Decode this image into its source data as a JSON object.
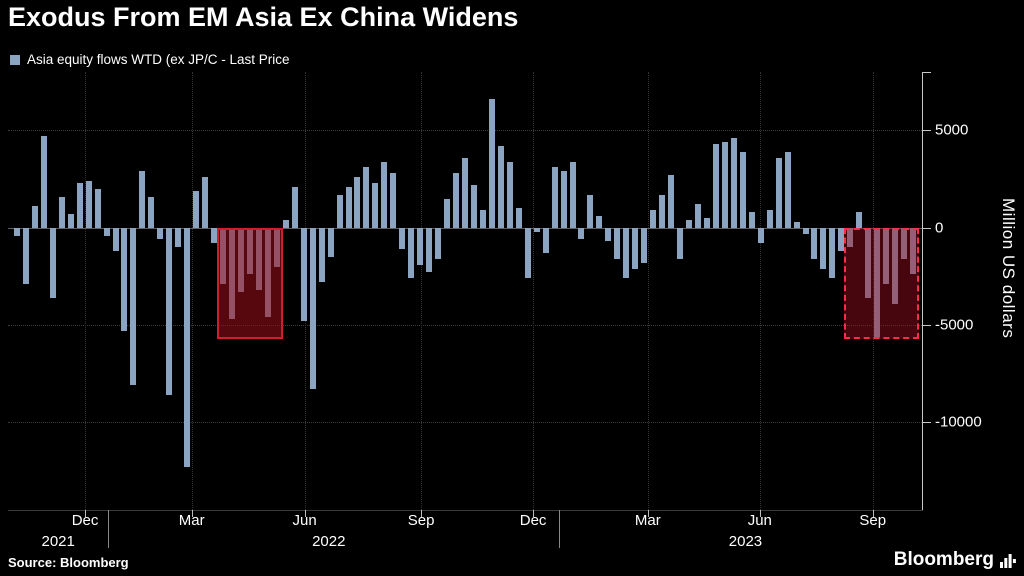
{
  "title": "Exodus From EM Asia Ex China Widens",
  "legend": {
    "label": "Asia equity flows WTD (ex JP/C - Last Price",
    "swatch_color": "#8ba4c2"
  },
  "y_axis": {
    "title": "Million US dollars"
  },
  "source": "Source: Bloomberg",
  "logo": {
    "text": "Bloomberg"
  },
  "chart_data": {
    "type": "bar",
    "title": "Exodus From EM Asia Ex China Widens",
    "series_name": "Asia equity flows WTD (ex JP/C - Last Price",
    "x_unit": "weekly",
    "ylabel": "Million US dollars",
    "ylim": [
      -14500,
      8000
    ],
    "y_ticks": [
      5000,
      0,
      -5000,
      -10000
    ],
    "bar_color": "#8ba4c2",
    "highlight_color": "#cf1f2e",
    "values": [
      -400,
      -2900,
      1100,
      4700,
      -3600,
      1600,
      700,
      2300,
      2400,
      2000,
      -400,
      -1200,
      -5300,
      -8100,
      2900,
      1600,
      -600,
      -8600,
      -1000,
      -12300,
      1900,
      2600,
      -800,
      -2900,
      -4700,
      -3300,
      -2400,
      -3200,
      -4600,
      -2000,
      400,
      2100,
      -4800,
      -8300,
      -2800,
      -1500,
      1700,
      2100,
      2600,
      3100,
      2300,
      3400,
      2800,
      -1100,
      -2600,
      -1900,
      -2300,
      -1600,
      1500,
      2800,
      3600,
      2200,
      900,
      6600,
      4200,
      3400,
      1000,
      -2600,
      -200,
      -1300,
      3100,
      2900,
      3400,
      -600,
      1700,
      600,
      -700,
      -1600,
      -2600,
      -2100,
      -1800,
      900,
      1700,
      2700,
      -1600,
      400,
      1200,
      500,
      4300,
      4400,
      4600,
      3900,
      800,
      -800,
      900,
      3600,
      3900,
      300,
      -300,
      -1600,
      -2100,
      -2600,
      -1200,
      -1000,
      800,
      -3600,
      -5600,
      -2900,
      -3900,
      -1600,
      -2400
    ],
    "x_ticks": [
      {
        "label": "Dec",
        "index": 7.6
      },
      {
        "label": "Mar",
        "index": 19.5
      },
      {
        "label": "Jun",
        "index": 32.1
      },
      {
        "label": "Sep",
        "index": 45.1
      },
      {
        "label": "Dec",
        "index": 57.6
      },
      {
        "label": "Mar",
        "index": 70.4
      },
      {
        "label": "Jun",
        "index": 82.9
      },
      {
        "label": "Sep",
        "index": 95.5
      }
    ],
    "year_labels": [
      {
        "label": "2021",
        "index": 4.6
      },
      {
        "label": "2022",
        "index": 34.8
      },
      {
        "label": "2023",
        "index": 81.3
      }
    ],
    "year_dividers": [
      10.2,
      60.5
    ],
    "highlights": [
      {
        "start_index": 23,
        "end_index": 29,
        "bottom_value": -5700,
        "style": "solid"
      },
      {
        "start_index": 93,
        "end_index": 100,
        "bottom_value": -5700,
        "style": "dashed"
      }
    ],
    "grid": true,
    "legend_position": "top-left"
  }
}
